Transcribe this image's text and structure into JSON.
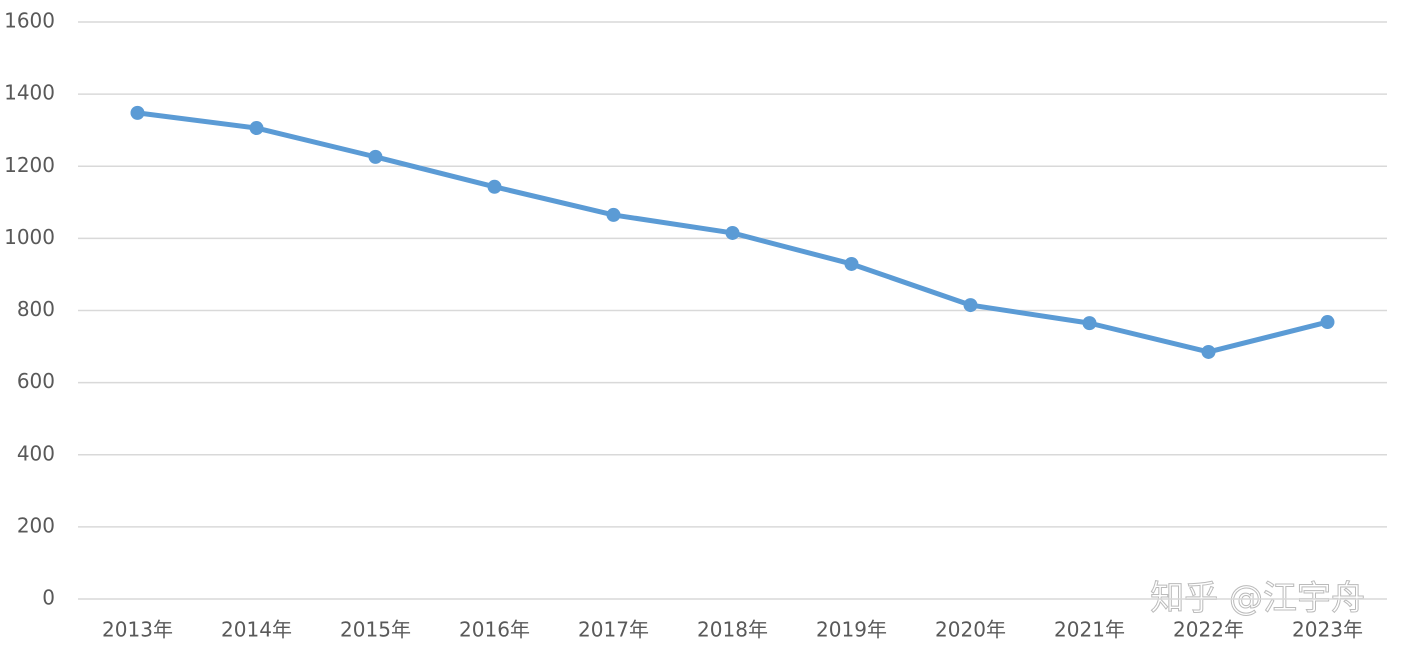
{
  "chart_data": {
    "type": "line",
    "categories": [
      "2013年",
      "2014年",
      "2015年",
      "2016年",
      "2017年",
      "2018年",
      "2019年",
      "2020年",
      "2021年",
      "2022年",
      "2023年"
    ],
    "series": [
      {
        "name": "value",
        "color": "#5b9bd5",
        "values": [
          1348,
          1306,
          1226,
          1143,
          1065,
          1015,
          929,
          815,
          765,
          685,
          768
        ]
      }
    ],
    "ylim": [
      0,
      1600
    ],
    "yticks": [
      0,
      200,
      400,
      600,
      800,
      1000,
      1200,
      1400,
      1600
    ],
    "grid": true,
    "watermark": "知乎 @江宇舟"
  }
}
